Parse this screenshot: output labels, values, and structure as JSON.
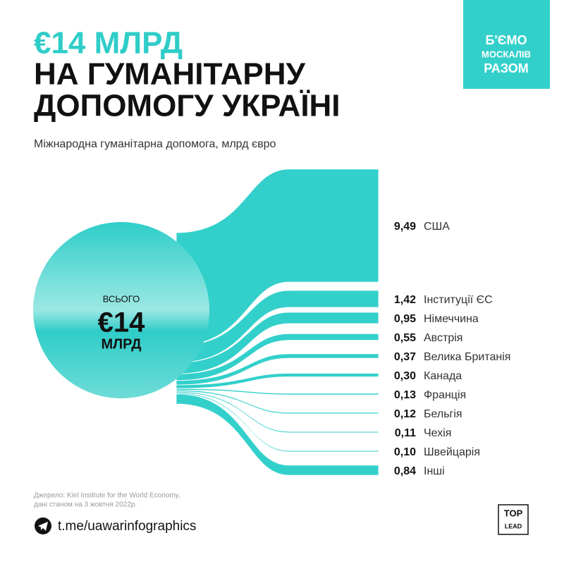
{
  "chart_data": {
    "type": "flow",
    "title_lines": [
      "€14 МЛРД",
      "НА ГУМАНІТАРНУ",
      "ДОПОМОГУ УКРАЇНІ"
    ],
    "subtitle": "Міжнародна гуманітарна допомога, млрд євро",
    "total": {
      "caption": "ВСЬОГО",
      "amount": "€14",
      "unit": "МЛРД"
    },
    "categories": [
      "США",
      "Інституції ЄС",
      "Німеччина",
      "Австрія",
      "Велика Британія",
      "Канада",
      "Франція",
      "Бельгія",
      "Чехія",
      "Швейцарія",
      "Інші"
    ],
    "values": [
      9.49,
      1.42,
      0.95,
      0.55,
      0.37,
      0.3,
      0.13,
      0.12,
      0.11,
      0.1,
      0.84
    ],
    "value_labels": [
      "9,49",
      "1,42",
      "0,95",
      "0,55",
      "0,37",
      "0,30",
      "0,13",
      "0,12",
      "0,11",
      "0,10",
      "0,84"
    ],
    "color": "#33d0cb"
  },
  "badge": [
    "Б'ЄМО",
    "МОСКАЛІВ",
    "РАЗОМ"
  ],
  "source": [
    "Джерело: Kiel Institute for the World Economy,",
    "дані станом на 3 жовтня 2022р."
  ],
  "link": "t.me/uawarinfographics",
  "logo": [
    "TOP",
    "LEAD"
  ]
}
